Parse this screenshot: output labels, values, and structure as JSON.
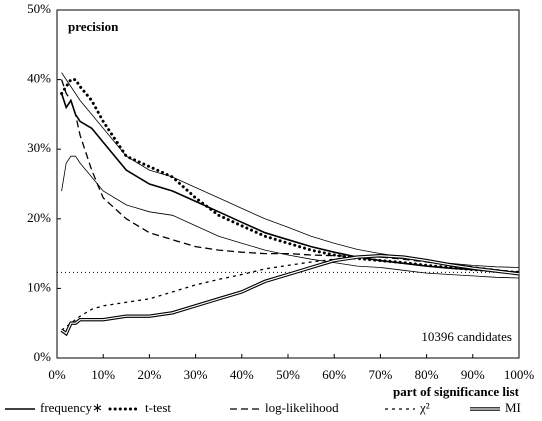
{
  "chart_data": {
    "type": "line",
    "y_label": "precision",
    "x_label": "part of significance list",
    "annotation": "10396 candidates",
    "x": [
      1,
      2,
      3,
      4,
      5,
      7.5,
      10,
      15,
      20,
      25,
      30,
      35,
      40,
      45,
      50,
      55,
      60,
      65,
      70,
      75,
      80,
      85,
      90,
      95,
      100
    ],
    "series": [
      {
        "name": "frequency∗",
        "color": "#000000",
        "style": "solid",
        "values": [
          38,
          36,
          37,
          35,
          34,
          33,
          31,
          27,
          25,
          24,
          22.5,
          21,
          19.5,
          18,
          17,
          16,
          15.2,
          14.5,
          14,
          13.6,
          13.2,
          12.9,
          12.7,
          12.5,
          12.3
        ]
      },
      {
        "name": "t-test",
        "color": "#000000",
        "style": "dotted",
        "values": [
          38,
          39,
          40,
          40,
          39,
          37,
          34,
          29,
          27.5,
          26,
          23,
          20.5,
          19,
          17.5,
          16.5,
          15.5,
          14.8,
          14.3,
          14,
          13.7,
          13.3,
          13,
          12.7,
          12.5,
          12.3
        ]
      },
      {
        "name": "log-likelihood",
        "color": "#000000",
        "style": "dashed",
        "values": [
          40,
          38,
          37,
          35,
          32,
          27,
          23,
          20,
          18,
          17,
          16,
          15.5,
          15.2,
          15,
          15,
          14.8,
          14.7,
          14.6,
          14.5,
          14.2,
          13.8,
          13.4,
          13,
          12.6,
          12.3
        ]
      },
      {
        "name": "χ²",
        "color": "#000000",
        "style": "short-dashed",
        "values": [
          4,
          4.5,
          5,
          5.5,
          6,
          7,
          7.5,
          8,
          8.5,
          9.5,
          10.5,
          11.3,
          12,
          12.8,
          13.3,
          13.8,
          14.2,
          14.5,
          14.5,
          14.3,
          14,
          13.5,
          13.1,
          12.7,
          12.3
        ]
      },
      {
        "name": "MI",
        "color": "#000000",
        "style": "double",
        "values": [
          4,
          3.5,
          5,
          5,
          5.5,
          5.5,
          5.5,
          6,
          6,
          6.5,
          7.5,
          8.5,
          9.5,
          11,
          12,
          13,
          14,
          14.5,
          14.7,
          14.5,
          14,
          13.4,
          12.9,
          12.5,
          12.1
        ]
      }
    ],
    "band": {
      "upper": [
        41,
        40,
        39,
        38,
        37,
        35,
        33,
        29,
        27,
        26,
        24.5,
        23,
        21.5,
        20,
        18.8,
        17.5,
        16.5,
        15.6,
        15,
        14.5,
        14,
        13.6,
        13.3,
        13.1,
        13
      ],
      "lower": [
        24,
        28,
        29,
        29,
        28,
        26,
        24,
        22,
        21,
        20.5,
        19,
        17.5,
        16.5,
        15.5,
        14.8,
        14.2,
        13.7,
        13.2,
        13,
        12.6,
        12.2,
        12,
        11.8,
        11.6,
        11.5
      ]
    },
    "baseline": 12.3,
    "xlim": [
      0,
      100
    ],
    "ylim": [
      0,
      50
    ],
    "xticks": [
      {
        "value": 0,
        "label": "0%"
      },
      {
        "value": 10,
        "label": "10%"
      },
      {
        "value": 20,
        "label": "20%"
      },
      {
        "value": 30,
        "label": "30%"
      },
      {
        "value": 40,
        "label": "40%"
      },
      {
        "value": 50,
        "label": "50%"
      },
      {
        "value": 60,
        "label": "60%"
      },
      {
        "value": 70,
        "label": "70%"
      },
      {
        "value": 80,
        "label": "80%"
      },
      {
        "value": 90,
        "label": "90%"
      },
      {
        "value": 100,
        "label": "100%"
      }
    ],
    "yticks": [
      {
        "value": 0,
        "label": "0%"
      },
      {
        "value": 10,
        "label": "10%"
      },
      {
        "value": 20,
        "label": "20%"
      },
      {
        "value": 30,
        "label": "30%"
      },
      {
        "value": 40,
        "label": "40%"
      },
      {
        "value": 50,
        "label": "50%"
      }
    ]
  }
}
